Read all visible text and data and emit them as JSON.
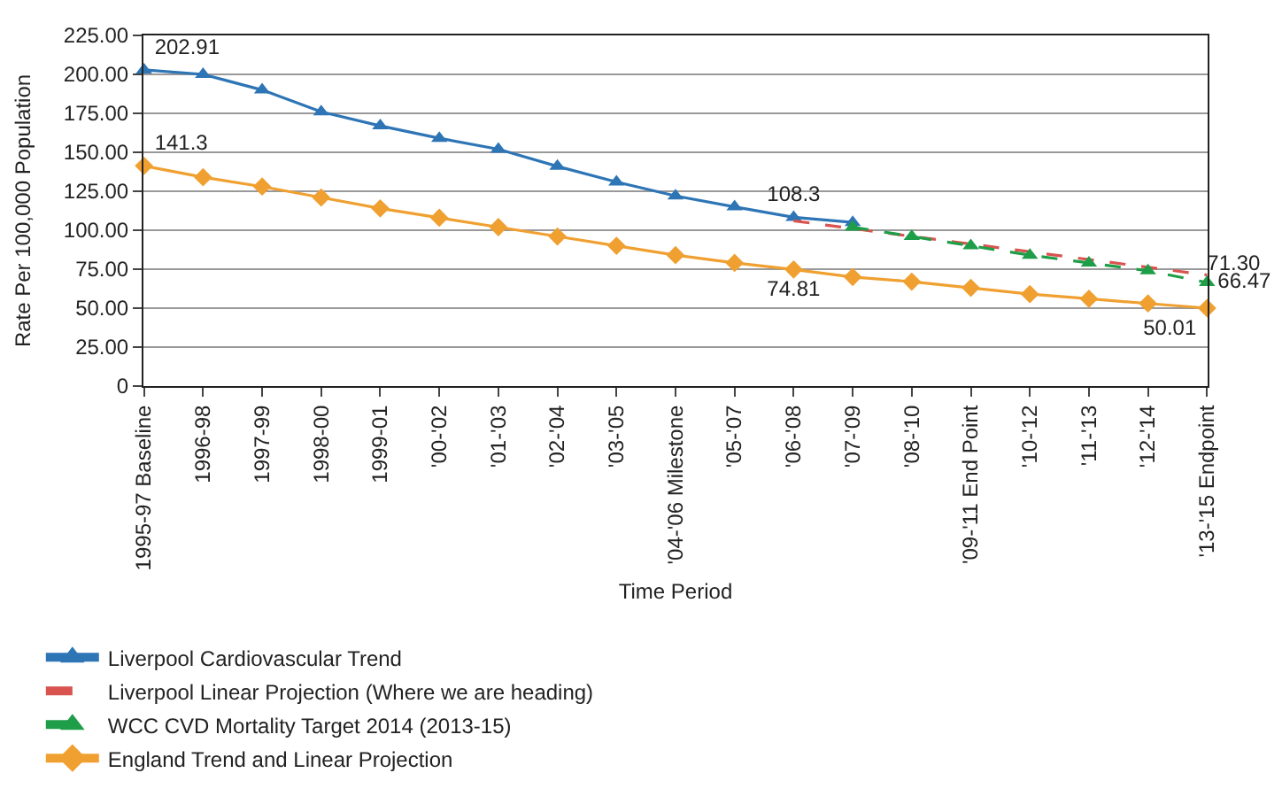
{
  "chart_data": {
    "type": "line",
    "xlabel": "Time Period",
    "ylabel": "Rate Per 100,000 Population",
    "categories": [
      "1995-97 Baseline",
      "1996-98",
      "1997-99",
      "1998-00",
      "1999-01",
      "'00-'02",
      "'01-'03",
      "'02-'04",
      "'03-'05",
      "'04-'06 Milestone",
      "'05-'07",
      "'06-'08",
      "'07-'09",
      "'08-'10",
      "'09-'11 End Point",
      "'10-'12",
      "'11-'13",
      "'12-'14",
      "'13-'15 Endpoint"
    ],
    "series": [
      {
        "name": "Liverpool Cardiovascular Trend",
        "color": "#2e75b6",
        "marker": "triangle",
        "line_style": "solid",
        "values": [
          202.91,
          200,
          190,
          176,
          167,
          159,
          152,
          141,
          131,
          122,
          115,
          108.3,
          105,
          null,
          null,
          null,
          null,
          null,
          null
        ],
        "value_labels": [
          "202.91",
          null,
          null,
          null,
          null,
          null,
          null,
          null,
          null,
          null,
          null,
          "108.3",
          null,
          null,
          null,
          null,
          null,
          null,
          null
        ]
      },
      {
        "name": "Liverpool Linear Projection (Where we are heading)",
        "color": "#d9534f",
        "marker": "none",
        "line_style": "dashed",
        "x": [
          "'06-'08",
          "'13-'15 Endpoint"
        ],
        "values": [
          106,
          71.3
        ],
        "value_labels": [
          null,
          "71.30"
        ]
      },
      {
        "name": "WCC CVD Mortality Target 2014 (2013-15)",
        "color": "#1e9e48",
        "marker": "triangle",
        "line_style": "dashed",
        "x": [
          "'07-'09",
          "'08-'10",
          "'09-'11 End Point",
          "'10-'12",
          "'11-'13",
          "'12-'14",
          "'13-'15 Endpoint"
        ],
        "values": [
          102,
          96,
          90,
          84,
          79,
          74,
          66.47
        ],
        "value_labels": [
          null,
          null,
          null,
          null,
          null,
          null,
          "66.47"
        ]
      },
      {
        "name": "England Trend and Linear Projection",
        "color": "#f0a030",
        "marker": "diamond",
        "line_style": "solid",
        "values": [
          141.3,
          134,
          128,
          121,
          114,
          108,
          102,
          96,
          90,
          84,
          79,
          74.81,
          70,
          67,
          63,
          59,
          56,
          53,
          50.01
        ],
        "value_labels": [
          "141.3",
          null,
          null,
          null,
          null,
          null,
          null,
          null,
          null,
          null,
          null,
          "74.81",
          null,
          null,
          null,
          null,
          null,
          null,
          "50.01"
        ]
      }
    ],
    "ylim": [
      0,
      225
    ],
    "yticks": [
      {
        "value": 0,
        "label": "0"
      },
      {
        "value": 25,
        "label": "25.00"
      },
      {
        "value": 50,
        "label": "50.00"
      },
      {
        "value": 75,
        "label": "75.00"
      },
      {
        "value": 100,
        "label": "100.00"
      },
      {
        "value": 125,
        "label": "125.00"
      },
      {
        "value": 150,
        "label": "150.00"
      },
      {
        "value": 175,
        "label": "175.00"
      },
      {
        "value": 200,
        "label": "200.00"
      },
      {
        "value": 225,
        "label": "225.00"
      }
    ],
    "grid": "y",
    "legend": "bottom"
  }
}
